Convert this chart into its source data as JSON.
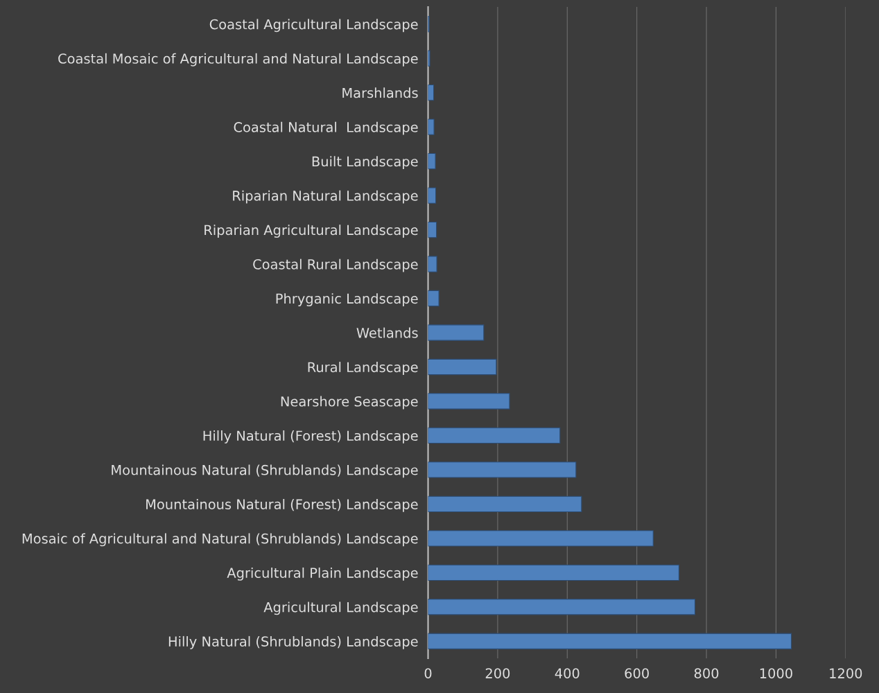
{
  "chart_data": {
    "type": "bar",
    "orientation": "horizontal",
    "categories": [
      "Coastal Agricultural Landscape",
      "Coastal Mosaic of Agricultural and Natural Landscape",
      "Marshlands",
      "Coastal Natural  Landscape",
      "Built Landscape",
      "Riparian Natural Landscape",
      "Riparian Agricultural Landscape",
      "Coastal Rural Landscape",
      "Phryganic Landscape",
      "Wetlands",
      "Rural Landscape",
      "Nearshore Seascape",
      "Hilly Natural (Forest) Landscape",
      "Mountainous Natural (Shrublands) Landscape",
      "Mountainous Natural (Forest) Landscape",
      "Mosaic of Agricultural and Natural (Shrublands) Landscape",
      "Agricultural Plain Landscape",
      "Agricultural Landscape",
      "Hilly Natural (Shrublands) Landscape"
    ],
    "values": [
      3,
      5,
      16,
      17,
      21,
      22,
      24,
      25,
      31,
      160,
      196,
      234,
      379,
      425,
      441,
      647,
      721,
      767,
      1044
    ],
    "color": "#4f81bd",
    "xlim": [
      0,
      1200
    ],
    "xticks": [
      0,
      200,
      400,
      600,
      800,
      1000,
      1200
    ],
    "grid": "x"
  }
}
